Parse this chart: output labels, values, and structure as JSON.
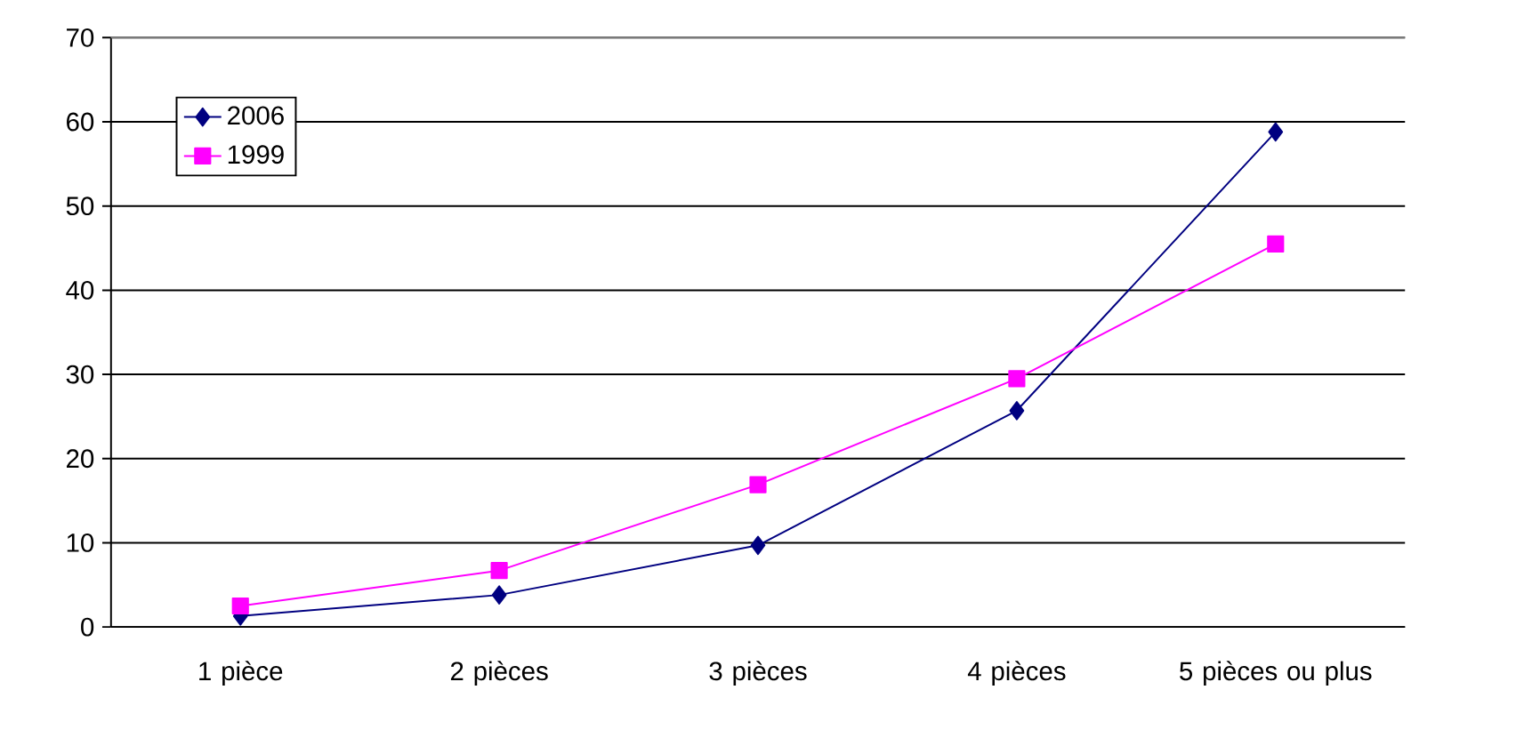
{
  "chart_data": {
    "type": "line",
    "categories": [
      "1 pièce",
      "2 pièces",
      "3 pièces",
      "4 pièces",
      "5 pièces ou plus"
    ],
    "series": [
      {
        "name": "2006",
        "color": "#000080",
        "marker": "diamond",
        "values": [
          1.3,
          3.8,
          9.7,
          25.7,
          58.8
        ]
      },
      {
        "name": "1999",
        "color": "#ff00ff",
        "marker": "square",
        "values": [
          2.5,
          6.7,
          16.9,
          29.5,
          45.5
        ]
      }
    ],
    "ylim": [
      0,
      70
    ],
    "yticks": [
      0,
      10,
      20,
      30,
      40,
      50,
      60,
      70
    ],
    "grid": "y",
    "legend": "top left"
  }
}
